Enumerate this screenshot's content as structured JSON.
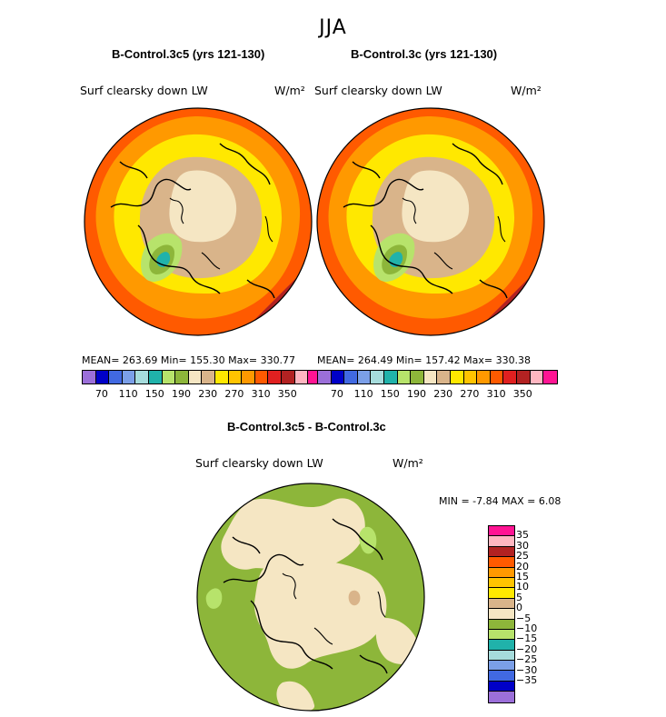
{
  "figure": {
    "season": "JJA"
  },
  "panels": [
    {
      "title": "B-Control.3c5 (yrs 121-130)",
      "variable": "Surf clearsky down LW",
      "units": "W/m²",
      "stats": "MEAN= 263.69   Min= 155.30   Max= 330.77"
    },
    {
      "title": "B-Control.3c (yrs 121-130)",
      "variable": "Surf clearsky down LW",
      "units": "W/m²",
      "stats": "MEAN= 264.49   Min= 157.42   Max= 330.38"
    }
  ],
  "difference": {
    "title": "B-Control.3c5 - B-Control.3c",
    "variable": "Surf clearsky down LW",
    "units": "W/m²",
    "stats": "MIN =   -7.84 MAX =     6.08"
  },
  "colorbar_field": {
    "colors": [
      "#9b6fd9",
      "#0000c8",
      "#4169e1",
      "#7b9fe8",
      "#a6dcdc",
      "#20b2aa",
      "#b7e36b",
      "#8db63a",
      "#f5e6c3",
      "#d9b48a",
      "#ffe800",
      "#ffc400",
      "#ff9900",
      "#ff5a00",
      "#e02020",
      "#b22222",
      "#ffb6c1",
      "#ff1493"
    ],
    "labels": [
      "70",
      "110",
      "150",
      "190",
      "230",
      "270",
      "310",
      "350"
    ]
  },
  "colorbar_diff": {
    "colors_top_to_bottom": [
      "#ff1493",
      "#ffb6c1",
      "#b22222",
      "#ff5a00",
      "#ff9900",
      "#ffc400",
      "#ffe800",
      "#d9b48a",
      "#f5e6c3",
      "#8db63a",
      "#b7e36b",
      "#20b2aa",
      "#a6dcdc",
      "#7b9fe8",
      "#4169e1",
      "#0000c8",
      "#9b6fd9"
    ],
    "labels": [
      "35",
      "30",
      "25",
      "20",
      "15",
      "10",
      "5",
      "0",
      "−5",
      "−10",
      "−15",
      "−20",
      "−25",
      "−30",
      "−35"
    ]
  },
  "map_colors": {
    "outer": "#ff5a00",
    "ring_orange": "#ff9900",
    "ring_yellow": "#ffe800",
    "tan": "#d9b48a",
    "cream": "#f5e6c3",
    "light_green": "#b7e36b",
    "green": "#8db63a",
    "teal": "#20b2aa",
    "red": "#b22222",
    "coast": "#000000"
  }
}
